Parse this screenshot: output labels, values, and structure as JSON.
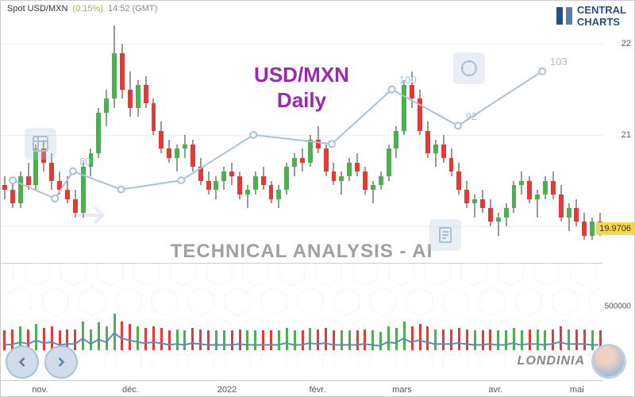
{
  "header": {
    "symbol": "Spot USD/MXN",
    "change": "(0.15%)",
    "time": "14:52 (GMT)"
  },
  "logo": {
    "line1": "CENTRAL",
    "line2": "CHARTS"
  },
  "title": {
    "main": "USD/MXN",
    "sub": "Daily"
  },
  "tech_title": "TECHNICAL  ANALYSIS - AI",
  "branding": "LONDINIA",
  "price_chart": {
    "type": "candlestick",
    "ylim": [
      19.6,
      22.3
    ],
    "yticks": [
      20,
      21,
      22
    ],
    "current_price": "19.9706",
    "title_color": "#9C27B0",
    "grid_color": "#eeeeee",
    "up_color": "#4CAF50",
    "down_color": "#E53935",
    "wick_color": "#333333",
    "candles": [
      {
        "o": 20.45,
        "h": 20.55,
        "l": 20.3,
        "c": 20.4
      },
      {
        "o": 20.4,
        "h": 20.48,
        "l": 20.2,
        "c": 20.25
      },
      {
        "o": 20.25,
        "h": 20.6,
        "l": 20.2,
        "c": 20.55
      },
      {
        "o": 20.55,
        "h": 20.7,
        "l": 20.4,
        "c": 20.45
      },
      {
        "o": 20.45,
        "h": 20.9,
        "l": 20.4,
        "c": 20.85
      },
      {
        "o": 20.85,
        "h": 20.95,
        "l": 20.6,
        "c": 20.7
      },
      {
        "o": 20.7,
        "h": 20.8,
        "l": 20.4,
        "c": 20.5
      },
      {
        "o": 20.5,
        "h": 20.6,
        "l": 20.35,
        "c": 20.4
      },
      {
        "o": 20.4,
        "h": 20.55,
        "l": 20.25,
        "c": 20.3
      },
      {
        "o": 20.3,
        "h": 20.4,
        "l": 20.1,
        "c": 20.15
      },
      {
        "o": 20.15,
        "h": 20.7,
        "l": 20.1,
        "c": 20.65
      },
      {
        "o": 20.65,
        "h": 20.85,
        "l": 20.55,
        "c": 20.8
      },
      {
        "o": 20.8,
        "h": 21.3,
        "l": 20.75,
        "c": 21.25
      },
      {
        "o": 21.25,
        "h": 21.5,
        "l": 21.1,
        "c": 21.4
      },
      {
        "o": 21.4,
        "h": 22.2,
        "l": 21.3,
        "c": 21.9
      },
      {
        "o": 21.9,
        "h": 22.0,
        "l": 21.4,
        "c": 21.5
      },
      {
        "o": 21.5,
        "h": 21.7,
        "l": 21.2,
        "c": 21.3
      },
      {
        "o": 21.3,
        "h": 21.6,
        "l": 21.2,
        "c": 21.55
      },
      {
        "o": 21.55,
        "h": 21.65,
        "l": 21.3,
        "c": 21.35
      },
      {
        "o": 21.35,
        "h": 21.4,
        "l": 21.0,
        "c": 21.05
      },
      {
        "o": 21.05,
        "h": 21.15,
        "l": 20.8,
        "c": 20.85
      },
      {
        "o": 20.85,
        "h": 20.95,
        "l": 20.7,
        "c": 20.75
      },
      {
        "o": 20.75,
        "h": 20.9,
        "l": 20.6,
        "c": 20.85
      },
      {
        "o": 20.85,
        "h": 21.0,
        "l": 20.75,
        "c": 20.9
      },
      {
        "o": 20.9,
        "h": 20.95,
        "l": 20.6,
        "c": 20.65
      },
      {
        "o": 20.65,
        "h": 20.75,
        "l": 20.45,
        "c": 20.5
      },
      {
        "o": 20.5,
        "h": 20.6,
        "l": 20.35,
        "c": 20.4
      },
      {
        "o": 20.4,
        "h": 20.55,
        "l": 20.3,
        "c": 20.5
      },
      {
        "o": 20.5,
        "h": 20.65,
        "l": 20.4,
        "c": 20.6
      },
      {
        "o": 20.6,
        "h": 20.7,
        "l": 20.45,
        "c": 20.55
      },
      {
        "o": 20.55,
        "h": 20.6,
        "l": 20.3,
        "c": 20.35
      },
      {
        "o": 20.35,
        "h": 20.45,
        "l": 20.2,
        "c": 20.4
      },
      {
        "o": 20.4,
        "h": 20.6,
        "l": 20.35,
        "c": 20.55
      },
      {
        "o": 20.55,
        "h": 20.65,
        "l": 20.4,
        "c": 20.45
      },
      {
        "o": 20.45,
        "h": 20.5,
        "l": 20.25,
        "c": 20.3
      },
      {
        "o": 20.3,
        "h": 20.45,
        "l": 20.2,
        "c": 20.4
      },
      {
        "o": 20.4,
        "h": 20.7,
        "l": 20.35,
        "c": 20.65
      },
      {
        "o": 20.65,
        "h": 20.8,
        "l": 20.55,
        "c": 20.75
      },
      {
        "o": 20.75,
        "h": 20.85,
        "l": 20.6,
        "c": 20.7
      },
      {
        "o": 20.7,
        "h": 21.0,
        "l": 20.65,
        "c": 20.95
      },
      {
        "o": 20.95,
        "h": 21.1,
        "l": 20.8,
        "c": 20.85
      },
      {
        "o": 20.85,
        "h": 20.9,
        "l": 20.55,
        "c": 20.6
      },
      {
        "o": 20.6,
        "h": 20.7,
        "l": 20.45,
        "c": 20.5
      },
      {
        "o": 20.5,
        "h": 20.6,
        "l": 20.35,
        "c": 20.55
      },
      {
        "o": 20.55,
        "h": 20.75,
        "l": 20.5,
        "c": 20.7
      },
      {
        "o": 20.7,
        "h": 20.8,
        "l": 20.55,
        "c": 20.6
      },
      {
        "o": 20.6,
        "h": 20.65,
        "l": 20.35,
        "c": 20.4
      },
      {
        "o": 20.4,
        "h": 20.5,
        "l": 20.25,
        "c": 20.45
      },
      {
        "o": 20.45,
        "h": 20.6,
        "l": 20.4,
        "c": 20.55
      },
      {
        "o": 20.55,
        "h": 20.9,
        "l": 20.5,
        "c": 20.85
      },
      {
        "o": 20.85,
        "h": 21.1,
        "l": 20.75,
        "c": 21.05
      },
      {
        "o": 21.05,
        "h": 21.6,
        "l": 21.0,
        "c": 21.55
      },
      {
        "o": 21.55,
        "h": 21.7,
        "l": 21.3,
        "c": 21.4
      },
      {
        "o": 21.4,
        "h": 21.5,
        "l": 21.0,
        "c": 21.05
      },
      {
        "o": 21.05,
        "h": 21.15,
        "l": 20.75,
        "c": 20.8
      },
      {
        "o": 20.8,
        "h": 20.95,
        "l": 20.65,
        "c": 20.9
      },
      {
        "o": 20.9,
        "h": 21.0,
        "l": 20.7,
        "c": 20.75
      },
      {
        "o": 20.75,
        "h": 20.85,
        "l": 20.55,
        "c": 20.6
      },
      {
        "o": 20.6,
        "h": 20.7,
        "l": 20.35,
        "c": 20.4
      },
      {
        "o": 20.4,
        "h": 20.5,
        "l": 20.2,
        "c": 20.25
      },
      {
        "o": 20.25,
        "h": 20.35,
        "l": 20.1,
        "c": 20.3
      },
      {
        "o": 20.3,
        "h": 20.4,
        "l": 20.15,
        "c": 20.2
      },
      {
        "o": 20.2,
        "h": 20.3,
        "l": 20.0,
        "c": 20.05
      },
      {
        "o": 20.05,
        "h": 20.15,
        "l": 19.9,
        "c": 20.1
      },
      {
        "o": 20.1,
        "h": 20.25,
        "l": 20.0,
        "c": 20.2
      },
      {
        "o": 20.2,
        "h": 20.5,
        "l": 20.15,
        "c": 20.45
      },
      {
        "o": 20.45,
        "h": 20.6,
        "l": 20.35,
        "c": 20.5
      },
      {
        "o": 20.5,
        "h": 20.55,
        "l": 20.25,
        "c": 20.3
      },
      {
        "o": 20.3,
        "h": 20.4,
        "l": 20.1,
        "c": 20.35
      },
      {
        "o": 20.35,
        "h": 20.55,
        "l": 20.3,
        "c": 20.5
      },
      {
        "o": 20.5,
        "h": 20.6,
        "l": 20.3,
        "c": 20.35
      },
      {
        "o": 20.35,
        "h": 20.45,
        "l": 20.05,
        "c": 20.1
      },
      {
        "o": 20.1,
        "h": 20.25,
        "l": 19.95,
        "c": 20.2
      },
      {
        "o": 20.2,
        "h": 20.3,
        "l": 20.0,
        "c": 20.05
      },
      {
        "o": 20.05,
        "h": 20.15,
        "l": 19.85,
        "c": 19.9
      },
      {
        "o": 19.9,
        "h": 20.1,
        "l": 19.85,
        "c": 20.05
      },
      {
        "o": 20.05,
        "h": 20.15,
        "l": 19.9,
        "c": 19.97
      }
    ],
    "indicator": {
      "color": "#a8c0d8",
      "points": [
        {
          "x": 0.02,
          "y": 20.5
        },
        {
          "x": 0.09,
          "y": 20.3
        },
        {
          "x": 0.12,
          "y": 20.6,
          "label": "80"
        },
        {
          "x": 0.2,
          "y": 20.4
        },
        {
          "x": 0.3,
          "y": 20.5
        },
        {
          "x": 0.42,
          "y": 21.0
        },
        {
          "x": 0.55,
          "y": 20.9
        },
        {
          "x": 0.65,
          "y": 21.5,
          "label": "100"
        },
        {
          "x": 0.76,
          "y": 21.1,
          "label": "92"
        },
        {
          "x": 0.9,
          "y": 21.7,
          "label": "103"
        }
      ]
    }
  },
  "volume_chart": {
    "type": "bar",
    "ylim": [
      0,
      1000000
    ],
    "yticks": [
      500000
    ],
    "up_color": "#4CAF50",
    "down_color": "#E53935",
    "line_color": "#5a8db8"
  },
  "xaxis": {
    "ticks": [
      {
        "pos": 0.065,
        "label": "nov."
      },
      {
        "pos": 0.215,
        "label": "déc."
      },
      {
        "pos": 0.375,
        "label": "2022"
      },
      {
        "pos": 0.525,
        "label": "févr."
      },
      {
        "pos": 0.665,
        "label": "mars"
      },
      {
        "pos": 0.82,
        "label": "avr."
      },
      {
        "pos": 0.955,
        "label": "mai"
      }
    ]
  }
}
